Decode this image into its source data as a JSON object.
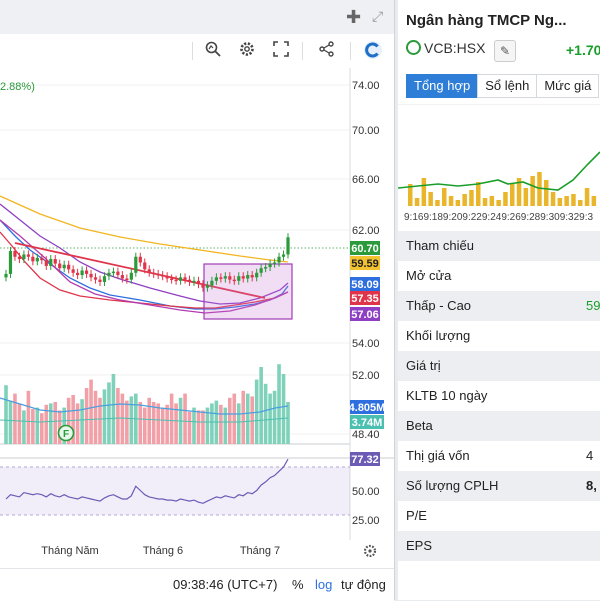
{
  "chart_panel": {
    "change_pct_text": "2.88%)",
    "price_axis": [
      "74.00",
      "70.00",
      "66.00",
      "62.00",
      "54.00",
      "52.00",
      "48.40"
    ],
    "price_tags": [
      {
        "label": "60.70",
        "color": "#2a9a3a"
      },
      {
        "label": "59.59",
        "color": "#f2c230"
      },
      {
        "label": "58.09",
        "color": "#2e6fe0"
      },
      {
        "label": "57.35",
        "color": "#e0344a"
      },
      {
        "label": "57.06",
        "color": "#8e3fc4"
      }
    ],
    "volume_tags": [
      {
        "label": "4.805M",
        "color": "#2e6fe0"
      },
      {
        "label": "3.74M",
        "color": "#4bbfb0"
      }
    ],
    "rsi_axis": [
      "50.00",
      "25.00"
    ],
    "rsi_tag": {
      "label": "77.32",
      "color": "#6b5bb5"
    },
    "months": [
      "Tháng Năm",
      "Tháng 6",
      "Tháng 7"
    ],
    "event_marker": "F",
    "time": "09:38:46 (UTC+7)",
    "pct_button": "%",
    "log_button": "log",
    "auto_button": "tự động"
  },
  "chart_data": {
    "type": "candlestick",
    "series": [
      {
        "name": "close",
        "values": [
          57.5,
          59.5,
          59.0,
          58.8,
          59.2,
          59.0,
          58.6,
          58.9,
          58.7,
          58.2,
          58.8,
          58.4,
          58.0,
          58.3,
          57.9,
          57.6,
          57.4,
          57.8,
          57.5,
          57.2,
          57.0,
          56.8,
          57.3,
          57.6,
          57.7,
          57.4,
          57.1,
          57.0,
          57.6,
          59.0,
          58.5,
          57.9,
          57.6,
          57.5,
          57.4,
          57.3,
          57.1,
          57.0,
          56.9,
          57.2,
          57.0,
          56.8,
          56.9,
          56.6,
          56.3,
          56.5,
          56.9,
          57.2,
          57.1,
          57.3,
          57.0,
          56.9,
          57.3,
          57.1,
          57.4,
          57.2,
          57.6,
          58.0,
          58.1,
          58.4,
          58.5,
          59.0,
          59.2,
          60.7
        ]
      },
      {
        "name": "volume",
        "values": [
          4.2,
          3.1,
          3.6,
          2.9,
          2.4,
          3.8,
          2.5,
          2.6,
          2.2,
          2.8,
          2.9,
          3.0,
          2.4,
          2.6,
          3.3,
          3.5,
          2.9,
          3.2,
          4.0,
          4.6,
          3.8,
          3.3,
          3.9,
          4.4,
          5.0,
          4.0,
          3.6,
          3.1,
          3.4,
          3.6,
          3.0,
          2.6,
          3.3,
          3.0,
          2.9,
          2.6,
          2.8,
          3.6,
          2.9,
          3.3,
          3.6,
          2.3,
          2.6,
          2.4,
          2.4,
          2.6,
          2.9,
          3.1,
          2.8,
          2.6,
          3.3,
          3.6,
          2.9,
          3.8,
          3.6,
          3.4,
          4.6,
          5.5,
          4.3,
          3.6,
          3.8,
          5.7,
          5.0,
          3.0
        ]
      }
    ],
    "rsi": [
      40,
      44,
      43,
      42,
      46,
      45,
      44,
      45,
      44,
      42,
      45,
      43,
      42,
      44,
      42,
      41,
      40,
      42,
      41,
      40,
      39,
      38,
      41,
      43,
      44,
      42,
      40,
      40,
      43,
      52,
      48,
      44,
      42,
      41,
      40,
      40,
      39,
      39,
      38,
      40,
      39,
      38,
      39,
      37,
      36,
      38,
      40,
      42,
      41,
      43,
      42,
      41,
      44,
      43,
      46,
      45,
      48,
      53,
      56,
      60,
      62,
      66,
      70,
      77.32
    ],
    "ylim": [
      48.4,
      75
    ]
  },
  "quote_panel": {
    "title": "Ngân hàng TMCP Ng...",
    "symbol": "VCB:HSX",
    "edit_icon": "pencil-icon",
    "change": "+1.70",
    "tabs": [
      "Tổng hợp",
      "Sổ lệnh",
      "Mức giá"
    ],
    "mini_chart_times": "9:169:189:209:229:249:269:289:309:329:3",
    "rows": [
      {
        "label": "Tham chiếu",
        "value": ""
      },
      {
        "label": "Mở cửa",
        "value": ""
      },
      {
        "label": "Thấp - Cao",
        "value": "59"
      },
      {
        "label": "Khối lượng",
        "value": ""
      },
      {
        "label": "Giá trị",
        "value": ""
      },
      {
        "label": "KLTB 10 ngày",
        "value": ""
      },
      {
        "label": "Beta",
        "value": ""
      },
      {
        "label": "Thị giá vốn",
        "value": "4"
      },
      {
        "label": "Số lượng CPLH",
        "value": "8,"
      },
      {
        "label": "P/E",
        "value": ""
      },
      {
        "label": "EPS",
        "value": ""
      }
    ]
  }
}
